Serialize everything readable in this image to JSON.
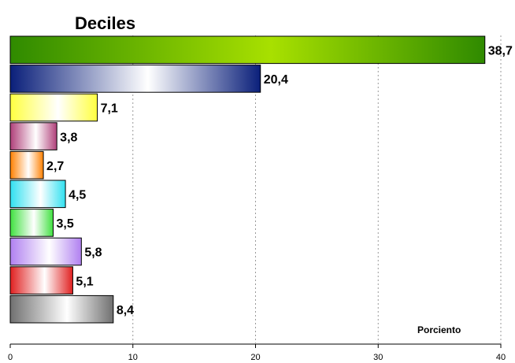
{
  "chart_data": {
    "type": "bar",
    "orientation": "horizontal",
    "title": "Deciles",
    "axis_label": "Porciento",
    "values": [
      38.7,
      20.4,
      7.1,
      3.8,
      2.7,
      4.5,
      3.5,
      5.8,
      5.1,
      8.4
    ],
    "value_labels": [
      "38,7",
      "20,4",
      "7,1",
      "3,8",
      "2,7",
      "4,5",
      "3,5",
      "5,8",
      "5,1",
      "8,4"
    ],
    "colors": [
      "#2f8a00",
      "#0a1f7a",
      "#ffff40",
      "#b0407a",
      "#ff8000",
      "#30e0f0",
      "#40e040",
      "#b080f0",
      "#e02020",
      "#707070"
    ],
    "xlim": [
      0,
      40
    ],
    "xticks": [
      0,
      10,
      20,
      30,
      40
    ],
    "grid": true
  }
}
